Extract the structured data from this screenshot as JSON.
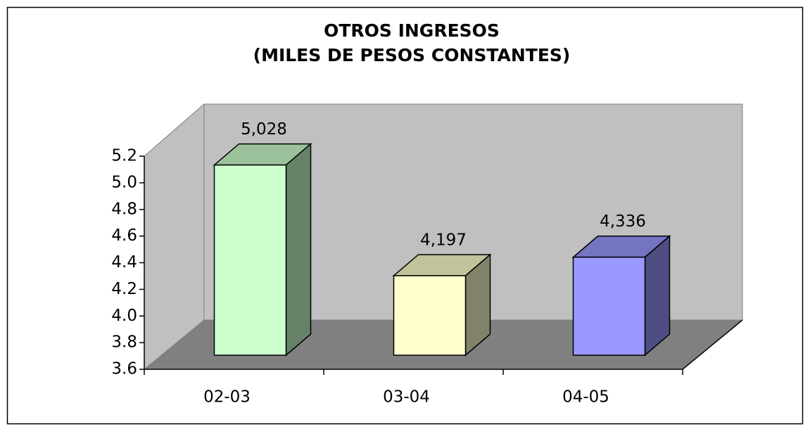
{
  "chart_data": {
    "type": "bar3d",
    "title": "OTROS INGRESOS",
    "subtitle": "(MILES DE PESOS CONSTANTES)",
    "categories": [
      "02-03",
      "03-04",
      "04-05"
    ],
    "values": [
      5.028,
      4.197,
      4.336
    ],
    "value_labels": [
      "5,028",
      "4,197",
      "4,336"
    ],
    "colors": [
      "#ccffcc",
      "#ffffcc",
      "#9999ff"
    ],
    "ylim": [
      3.6,
      5.2
    ],
    "yticks": [
      3.6,
      3.8,
      {
        "value": 4,
        "label": "4.0"
      },
      4.2,
      4.4,
      4.6,
      4.8,
      {
        "value": 5,
        "label": "5.0"
      },
      5.2
    ]
  }
}
